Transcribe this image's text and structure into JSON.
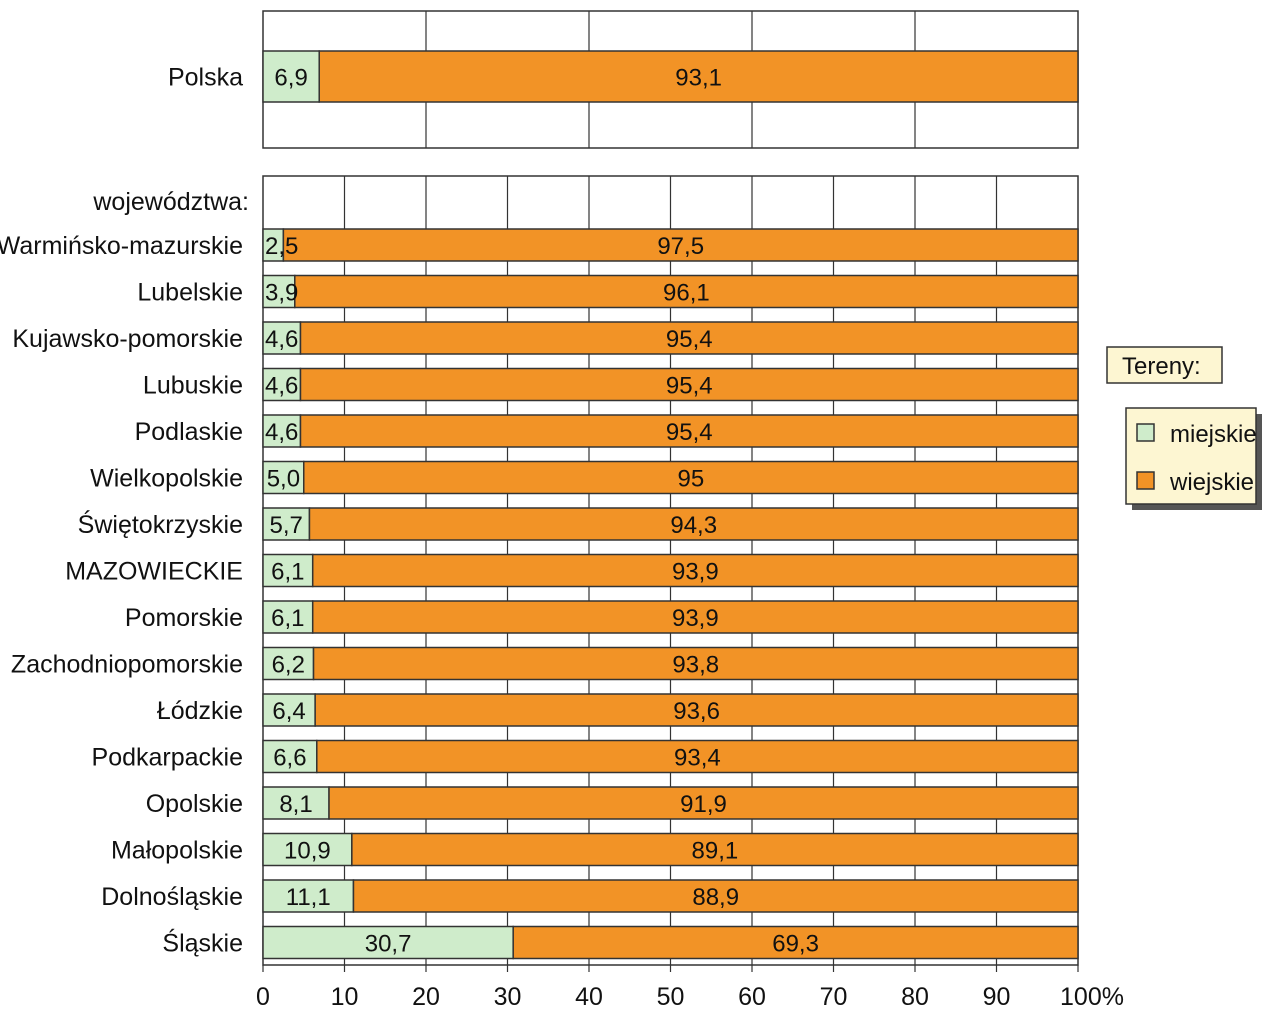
{
  "chart_data": {
    "type": "bar",
    "stacked": true,
    "orientation": "horizontal",
    "xlim": [
      0,
      100
    ],
    "xticks": [
      "0",
      "10",
      "20",
      "30",
      "40",
      "50",
      "60",
      "70",
      "80",
      "90",
      "100%"
    ],
    "group_label": "województwa:",
    "legend": {
      "title": "Tereny:",
      "placement": "right",
      "entries": [
        "miejskie",
        "wiejskie"
      ]
    },
    "colors": {
      "miejskie": "#cfeccb",
      "wiejskie": "#f29326",
      "frame": "#333333",
      "legend_bg": "#fdf6d2"
    },
    "total": {
      "category": "Polska",
      "miejskie": 6.9,
      "wiejskie": 93.1,
      "miejskie_label": "6,9",
      "wiejskie_label": "93,1"
    },
    "categories": [
      "Warmińsko-mazurskie",
      "Lubelskie",
      "Kujawsko-pomorskie",
      "Lubuskie",
      "Podlaskie",
      "Wielkopolskie",
      "Świętokrzyskie",
      "MAZOWIECKIE",
      "Pomorskie",
      "Zachodniopomorskie",
      "Łódzkie",
      "Podkarpackie",
      "Opolskie",
      "Małopolskie",
      "Dolnośląskie",
      "Śląskie"
    ],
    "series": [
      {
        "name": "miejskie",
        "values": [
          2.5,
          3.9,
          4.6,
          4.6,
          4.6,
          5.0,
          5.7,
          6.1,
          6.1,
          6.2,
          6.4,
          6.6,
          8.1,
          10.9,
          11.1,
          30.7
        ],
        "labels": [
          "2,5",
          "3,9",
          "4,6",
          "4,6",
          "4,6",
          "5,0",
          "5,7",
          "6,1",
          "6,1",
          "6,2",
          "6,4",
          "6,6",
          "8,1",
          "10,9",
          "11,1",
          "30,7"
        ]
      },
      {
        "name": "wiejskie",
        "values": [
          97.5,
          96.1,
          95.4,
          95.4,
          95.4,
          95.0,
          94.3,
          93.9,
          93.9,
          93.8,
          93.6,
          93.4,
          91.9,
          89.1,
          88.9,
          69.3
        ],
        "labels": [
          "97,5",
          "96,1",
          "95,4",
          "95,4",
          "95,4",
          "95",
          "94,3",
          "93,9",
          "93,9",
          "93,8",
          "93,6",
          "93,4",
          "91,9",
          "89,1",
          "88,9",
          "69,3"
        ]
      }
    ]
  }
}
